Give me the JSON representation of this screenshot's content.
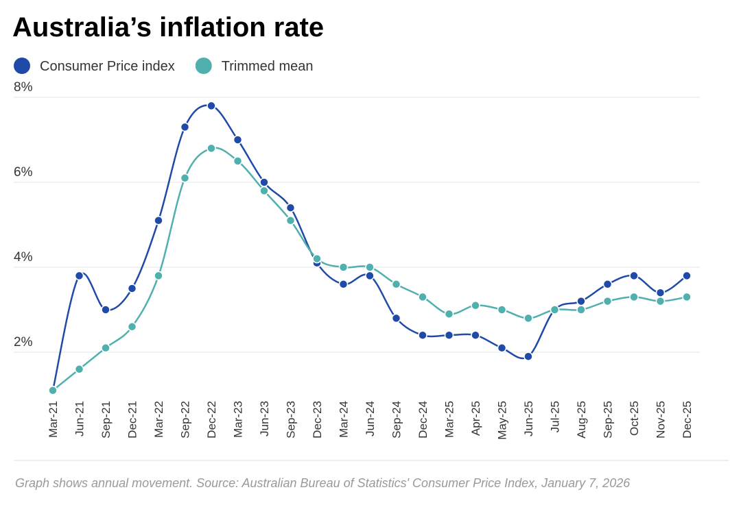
{
  "chart_data": {
    "type": "line",
    "title": "Australia’s inflation rate",
    "categories": [
      "Mar-21",
      "Jun-21",
      "Sep-21",
      "Dec-21",
      "Mar-22",
      "Sep-22",
      "Dec-22",
      "Mar-23",
      "Jun-23",
      "Sep-23",
      "Dec-23",
      "Mar-24",
      "Jun-24",
      "Sep-24",
      "Dec-24",
      "Mar-25",
      "Apr-25",
      "May-25",
      "Jun-25",
      "Jul-25",
      "Aug-25",
      "Sep-25",
      "Oct-25",
      "Nov-25",
      "Dec-25"
    ],
    "series": [
      {
        "name": "Consumer Price index",
        "color": "#1f4aa8",
        "values": [
          1.1,
          3.8,
          3.0,
          3.5,
          5.1,
          7.3,
          7.8,
          7.0,
          6.0,
          5.4,
          4.1,
          3.6,
          3.8,
          2.8,
          2.4,
          2.4,
          2.4,
          2.1,
          1.9,
          3.0,
          3.2,
          3.6,
          3.8,
          3.4,
          3.8
        ]
      },
      {
        "name": "Trimmed mean",
        "color": "#4fb0ad",
        "values": [
          1.1,
          1.6,
          2.1,
          2.6,
          3.8,
          6.1,
          6.8,
          6.5,
          5.8,
          5.1,
          4.2,
          4.0,
          4.0,
          3.6,
          3.3,
          2.9,
          3.1,
          3.0,
          2.8,
          3.0,
          3.0,
          3.2,
          3.3,
          3.2,
          3.3
        ]
      }
    ],
    "ylim": [
      1,
      8
    ],
    "yticks": [
      {
        "value": 2,
        "label": "2%"
      },
      {
        "value": 4,
        "label": "4%"
      },
      {
        "value": 6,
        "label": "6%"
      },
      {
        "value": 8,
        "label": "8%"
      }
    ],
    "grid": true,
    "legend": "top-left",
    "source": "Graph shows annual movement. Source:  Australian Bureau of Statistics' Consumer Price Index, January 7, 2026"
  }
}
